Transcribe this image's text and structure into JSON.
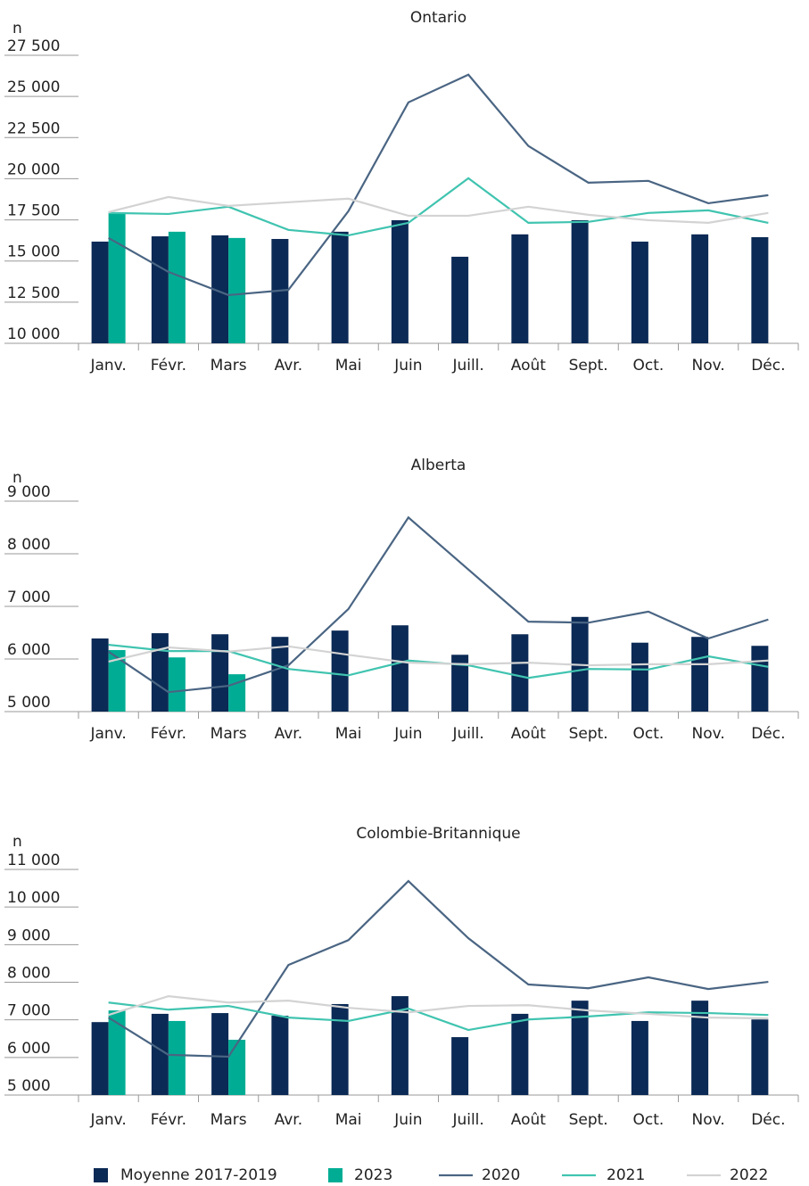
{
  "chart_data": [
    {
      "type": "combo",
      "title": "Ontario",
      "ylabel": "n",
      "categories": [
        "Janv.",
        "Févr.",
        "Mars",
        "Avr.",
        "Mai",
        "Juin",
        "Juill.",
        "Août",
        "Sept.",
        "Oct.",
        "Nov.",
        "Déc."
      ],
      "ylim": [
        10000,
        27500
      ],
      "yticks": [
        {
          "value": 10000,
          "label": "10 000"
        },
        {
          "value": 12500,
          "label": "12 500"
        },
        {
          "value": 15000,
          "label": "15 000"
        },
        {
          "value": 17500,
          "label": "17 500"
        },
        {
          "value": 20000,
          "label": "20 000"
        },
        {
          "value": 22500,
          "label": "22 500"
        },
        {
          "value": 25000,
          "label": "25 000"
        },
        {
          "value": 27500,
          "label": "27 500"
        }
      ],
      "series": [
        {
          "name": "Moyenne 2017-2019",
          "kind": "bar",
          "color": "#0b2a55",
          "values": [
            16180,
            16500,
            16560,
            16340,
            16780,
            17480,
            15260,
            16620,
            17480,
            16180,
            16620,
            16450
          ]
        },
        {
          "name": "2023",
          "kind": "bar",
          "color": "#00ad94",
          "values": [
            17920,
            16780,
            16400,
            null,
            null,
            null,
            null,
            null,
            null,
            null,
            null,
            null
          ]
        },
        {
          "name": "2020",
          "kind": "line",
          "color": "#4a6583",
          "values": [
            16400,
            14340,
            12930,
            13250,
            18030,
            24640,
            26320,
            21990,
            19760,
            19870,
            18510,
            19000
          ]
        },
        {
          "name": "2021",
          "kind": "line",
          "color": "#40c4b0",
          "values": [
            17920,
            17860,
            18300,
            16890,
            16560,
            17320,
            20030,
            17320,
            17380,
            17920,
            18080,
            17320
          ]
        },
        {
          "name": "2022",
          "kind": "line",
          "color": "#d3d3d3",
          "values": [
            17970,
            18890,
            18350,
            18570,
            18790,
            17750,
            17750,
            18300,
            17810,
            17480,
            17320,
            17920
          ]
        }
      ]
    },
    {
      "type": "combo",
      "title": "Alberta",
      "ylabel": "n",
      "categories": [
        "Janv.",
        "Févr.",
        "Mars",
        "Avr.",
        "Mai",
        "Juin",
        "Juill.",
        "Août",
        "Sept.",
        "Oct.",
        "Nov.",
        "Déc."
      ],
      "ylim": [
        5000,
        9000
      ],
      "yticks": [
        {
          "value": 5000,
          "label": "5 000"
        },
        {
          "value": 6000,
          "label": "6 000"
        },
        {
          "value": 7000,
          "label": "7 000"
        },
        {
          "value": 8000,
          "label": "8 000"
        },
        {
          "value": 9000,
          "label": "9 000"
        }
      ],
      "series": [
        {
          "name": "Moyenne 2017-2019",
          "kind": "bar",
          "color": "#0b2a55",
          "values": [
            6390,
            6490,
            6470,
            6420,
            6540,
            6640,
            6080,
            6470,
            6800,
            6310,
            6420,
            6250
          ]
        },
        {
          "name": "2023",
          "kind": "bar",
          "color": "#00ad94",
          "values": [
            6170,
            6030,
            5710,
            null,
            null,
            null,
            null,
            null,
            null,
            null,
            null,
            null
          ]
        },
        {
          "name": "2020",
          "kind": "line",
          "color": "#4a6583",
          "values": [
            6140,
            5370,
            5490,
            5880,
            6950,
            8690,
            7700,
            6710,
            6690,
            6900,
            6390,
            6750
          ]
        },
        {
          "name": "2021",
          "kind": "line",
          "color": "#40c4b0",
          "values": [
            6270,
            6150,
            6150,
            5810,
            5690,
            5970,
            5880,
            5640,
            5810,
            5800,
            6050,
            5850
          ]
        },
        {
          "name": "2022",
          "kind": "line",
          "color": "#d3d3d3",
          "values": [
            5950,
            6220,
            6140,
            6240,
            6080,
            5930,
            5900,
            5930,
            5880,
            5900,
            5900,
            5970
          ]
        }
      ]
    },
    {
      "type": "combo",
      "title": "Colombie-Britannique",
      "ylabel": "n",
      "categories": [
        "Janv.",
        "Févr.",
        "Mars",
        "Avr.",
        "Mai",
        "Juin",
        "Juill.",
        "Août",
        "Sept.",
        "Oct.",
        "Nov.",
        "Déc."
      ],
      "ylim": [
        5000,
        11000
      ],
      "yticks": [
        {
          "value": 5000,
          "label": "5 000"
        },
        {
          "value": 6000,
          "label": "6 000"
        },
        {
          "value": 7000,
          "label": "7 000"
        },
        {
          "value": 8000,
          "label": "8 000"
        },
        {
          "value": 9000,
          "label": "9 000"
        },
        {
          "value": 10000,
          "label": "10 000"
        },
        {
          "value": 11000,
          "label": "11 000"
        }
      ],
      "series": [
        {
          "name": "Moyenne 2017-2019",
          "kind": "bar",
          "color": "#0b2a55",
          "values": [
            6940,
            7160,
            7180,
            7110,
            7420,
            7630,
            6540,
            7160,
            7510,
            6970,
            7510,
            7010
          ]
        },
        {
          "name": "2023",
          "kind": "bar",
          "color": "#00ad94",
          "values": [
            7250,
            6970,
            6470,
            null,
            null,
            null,
            null,
            null,
            null,
            null,
            null,
            null
          ]
        },
        {
          "name": "2020",
          "kind": "line",
          "color": "#4a6583",
          "values": [
            7060,
            6070,
            6020,
            8460,
            9120,
            10690,
            9170,
            7940,
            7840,
            8130,
            7820,
            8010
          ]
        },
        {
          "name": "2021",
          "kind": "line",
          "color": "#40c4b0",
          "values": [
            7460,
            7270,
            7370,
            7060,
            6970,
            7300,
            6730,
            7010,
            7090,
            7200,
            7180,
            7130
          ]
        },
        {
          "name": "2022",
          "kind": "line",
          "color": "#d3d3d3",
          "values": [
            7130,
            7630,
            7460,
            7510,
            7320,
            7200,
            7370,
            7390,
            7250,
            7160,
            7060,
            7040
          ]
        }
      ]
    }
  ]
}
